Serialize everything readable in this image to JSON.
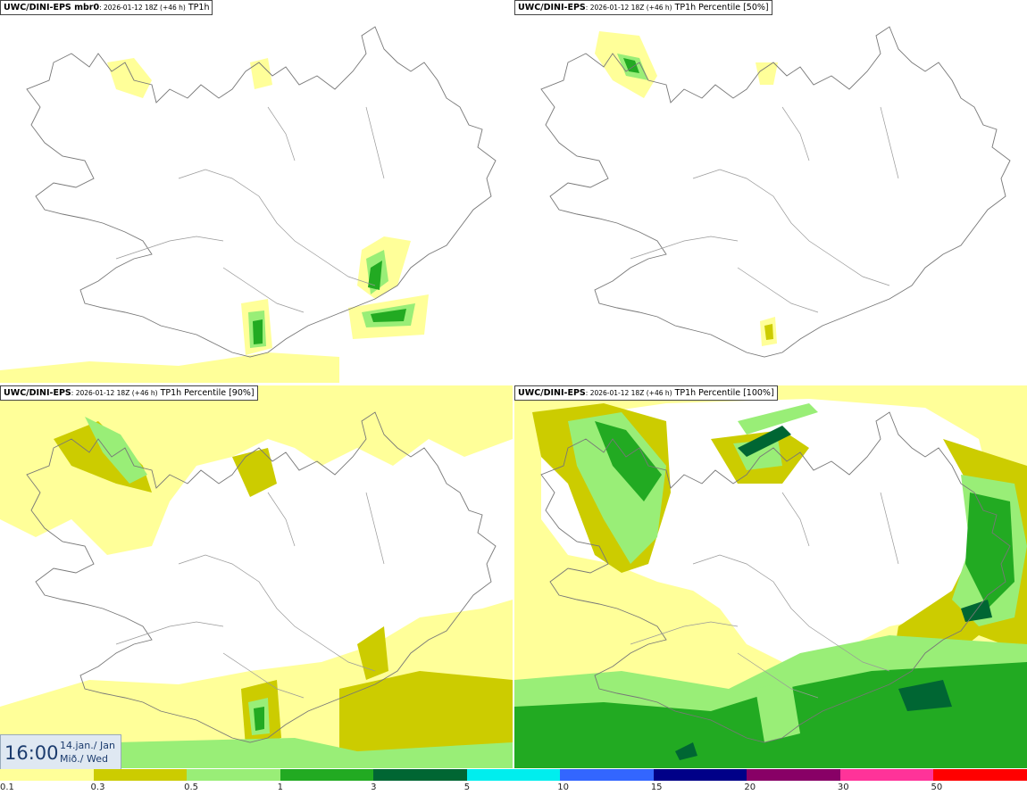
{
  "panels": [
    {
      "title_bold": "UWC/DINI-EPS mbr0",
      "title_small": ": 2026-01-12 18Z (+46 h)",
      "title_var": " TP1h"
    },
    {
      "title_bold": "UWC/DINI-EPS",
      "title_small": ": 2026-01-12 18Z (+46 h)",
      "title_var": " TP1h Percentile [50%]"
    },
    {
      "title_bold": "UWC/DINI-EPS",
      "title_small": ": 2026-01-12 18Z (+46 h)",
      "title_var": " TP1h Percentile [90%]"
    },
    {
      "title_bold": "UWC/DINI-EPS",
      "title_small": ": 2026-01-12 18Z (+46 h)",
      "title_var": " TP1h Percentile [100%]"
    }
  ],
  "time": {
    "clock": "16:00",
    "date_line1": "14.jan./ Jan",
    "date_line2": "Mið./ Wed"
  },
  "legend": {
    "colors": [
      "#ffff99",
      "#cccc00",
      "#99ee77",
      "#22aa22",
      "#006633",
      "#00eeee",
      "#3366ff",
      "#000088",
      "#880066",
      "#ff3399",
      "#ff0000"
    ],
    "ticks": [
      "0.1",
      "0.3",
      "0.5",
      "1",
      "3",
      "5",
      "10",
      "15",
      "20",
      "30",
      "50"
    ]
  }
}
